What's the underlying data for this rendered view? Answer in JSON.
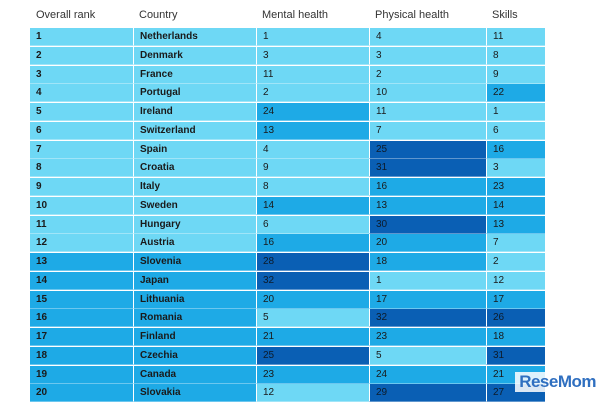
{
  "chart_data": {
    "type": "table",
    "columns": [
      "Overall rank",
      "Country",
      "Mental health",
      "Physical health",
      "Skills"
    ],
    "rows": [
      {
        "rank": "1",
        "country": "Netherlands",
        "mental": "1",
        "physical": "4",
        "skills": "11"
      },
      {
        "rank": "2",
        "country": "Denmark",
        "mental": "3",
        "physical": "3",
        "skills": "8"
      },
      {
        "rank": "3",
        "country": "France",
        "mental": "11",
        "physical": "2",
        "skills": "9"
      },
      {
        "rank": "4",
        "country": "Portugal",
        "mental": "2",
        "physical": "10",
        "skills": "22"
      },
      {
        "rank": "5",
        "country": "Ireland",
        "mental": "24",
        "physical": "11",
        "skills": "1"
      },
      {
        "rank": "6",
        "country": "Switzerland",
        "mental": "13",
        "physical": "7",
        "skills": "6"
      },
      {
        "rank": "7",
        "country": "Spain",
        "mental": "4",
        "physical": "25",
        "skills": "16"
      },
      {
        "rank": "8",
        "country": "Croatia",
        "mental": "9",
        "physical": "31",
        "skills": "3"
      },
      {
        "rank": "9",
        "country": "Italy",
        "mental": "8",
        "physical": "16",
        "skills": "23"
      },
      {
        "rank": "10",
        "country": "Sweden",
        "mental": "14",
        "physical": "13",
        "skills": "14"
      },
      {
        "rank": "11",
        "country": "Hungary",
        "mental": "6",
        "physical": "30",
        "skills": "13"
      },
      {
        "rank": "12",
        "country": "Austria",
        "mental": "16",
        "physical": "20",
        "skills": "7"
      },
      {
        "rank": "13",
        "country": "Slovenia",
        "mental": "28",
        "physical": "18",
        "skills": "2"
      },
      {
        "rank": "14",
        "country": "Japan",
        "mental": "32",
        "physical": "1",
        "skills": "12"
      },
      {
        "rank": "15",
        "country": "Lithuania",
        "mental": "20",
        "physical": "17",
        "skills": "17"
      },
      {
        "rank": "16",
        "country": "Romania",
        "mental": "5",
        "physical": "32",
        "skills": "26"
      },
      {
        "rank": "17",
        "country": "Finland",
        "mental": "21",
        "physical": "23",
        "skills": "18"
      },
      {
        "rank": "18",
        "country": "Czechia",
        "mental": "25",
        "physical": "5",
        "skills": "31"
      },
      {
        "rank": "19",
        "country": "Canada",
        "mental": "23",
        "physical": "24",
        "skills": "21"
      },
      {
        "rank": "20",
        "country": "Slovakia",
        "mental": "12",
        "physical": "29",
        "skills": "27"
      }
    ],
    "colors": {
      "tier1": "#6ed8f5",
      "tier2": "#1eaae6",
      "tier3": "#0a5fb4"
    },
    "tier_limits": [
      12,
      24
    ]
  },
  "watermark": {
    "text": "ReseMom"
  }
}
